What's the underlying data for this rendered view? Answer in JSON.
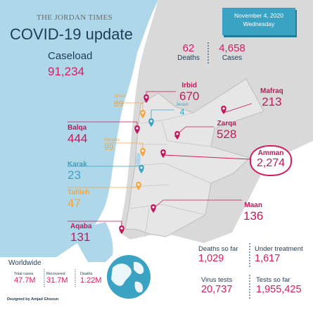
{
  "header": {
    "masthead": "THE JORDAN TIMES",
    "title": "COVID-19 update",
    "date_line1": "November 4, 2020",
    "date_line2": "Wednesday"
  },
  "caseload": {
    "label": "Caseload",
    "value": "91,234"
  },
  "daily": {
    "deaths_value": "62",
    "deaths_label": "Deaths",
    "cases_value": "4,658",
    "cases_label": "Cases"
  },
  "cities": {
    "irbid": {
      "name": "Irbid",
      "value": "670"
    },
    "mafraq": {
      "name": "Mafraq",
      "value": "213"
    },
    "ajloun": {
      "name": "Ajloun",
      "value": "89"
    },
    "jerash": {
      "name": "Jerash",
      "value": "4"
    },
    "balqa": {
      "name": "Balqa",
      "value": "444"
    },
    "zarqa": {
      "name": "Zarqa",
      "value": "528"
    },
    "madaba": {
      "name": "Madaba",
      "value": "99"
    },
    "amman": {
      "name": "Amman",
      "value": "2,274"
    },
    "karak": {
      "name": "Karak",
      "value": "23"
    },
    "tafileh": {
      "name": "Tafileh",
      "value": "47"
    },
    "maan": {
      "name": "Maan",
      "value": "136"
    },
    "aqaba": {
      "name": "Aqaba",
      "value": "131"
    }
  },
  "totals": {
    "deaths_label": "Deaths so far",
    "deaths_value": "1,029",
    "treatment_label": "Under treatment",
    "treatment_value": "1,617",
    "tests_label": "Virus tests",
    "tests_value": "20,737",
    "tests_total_label": "Tests so far",
    "tests_total_value": "1,955,425"
  },
  "worldwide": {
    "title": "Worldwide",
    "total_label": "Total cases",
    "total_value": "47.7M",
    "recovered_label": "Recovered",
    "recovered_value": "31.7M",
    "deaths_label": "Deaths",
    "deaths_value": "1.22M"
  },
  "credit": "Designed by Amjad Ghsoun",
  "colors": {
    "sea": "#aed8ea",
    "land": "#d6d6d6",
    "jordan": "#e4e4e4",
    "pink": "#d81b60",
    "orange": "#f4a641",
    "teal": "#3aa3c4",
    "navy": "#1e3c58"
  }
}
